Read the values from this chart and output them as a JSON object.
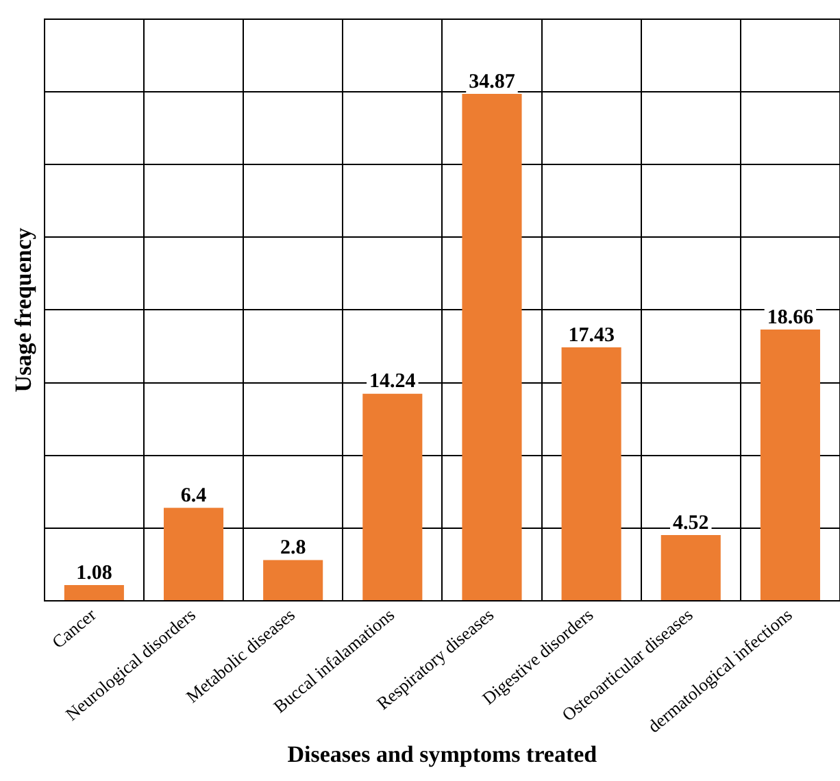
{
  "chart_data": {
    "type": "bar",
    "xlabel": "Diseases and symptoms treated",
    "ylabel": "Usage frequency",
    "categories": [
      "Cancer",
      "Neurological disorders",
      "Metabolic diseases",
      "Buccal infalamations",
      "Respiratory diseases",
      "Digestive disorders",
      "Osteoarticular diseases",
      "dermatological infections"
    ],
    "values": [
      1.08,
      6.4,
      2.8,
      14.24,
      34.87,
      17.43,
      4.52,
      18.66
    ],
    "color": "#ed7d31",
    "ylim": [
      0,
      40
    ],
    "tick_labels": "x",
    "grid": true,
    "data_labels": true,
    "legend": false
  }
}
